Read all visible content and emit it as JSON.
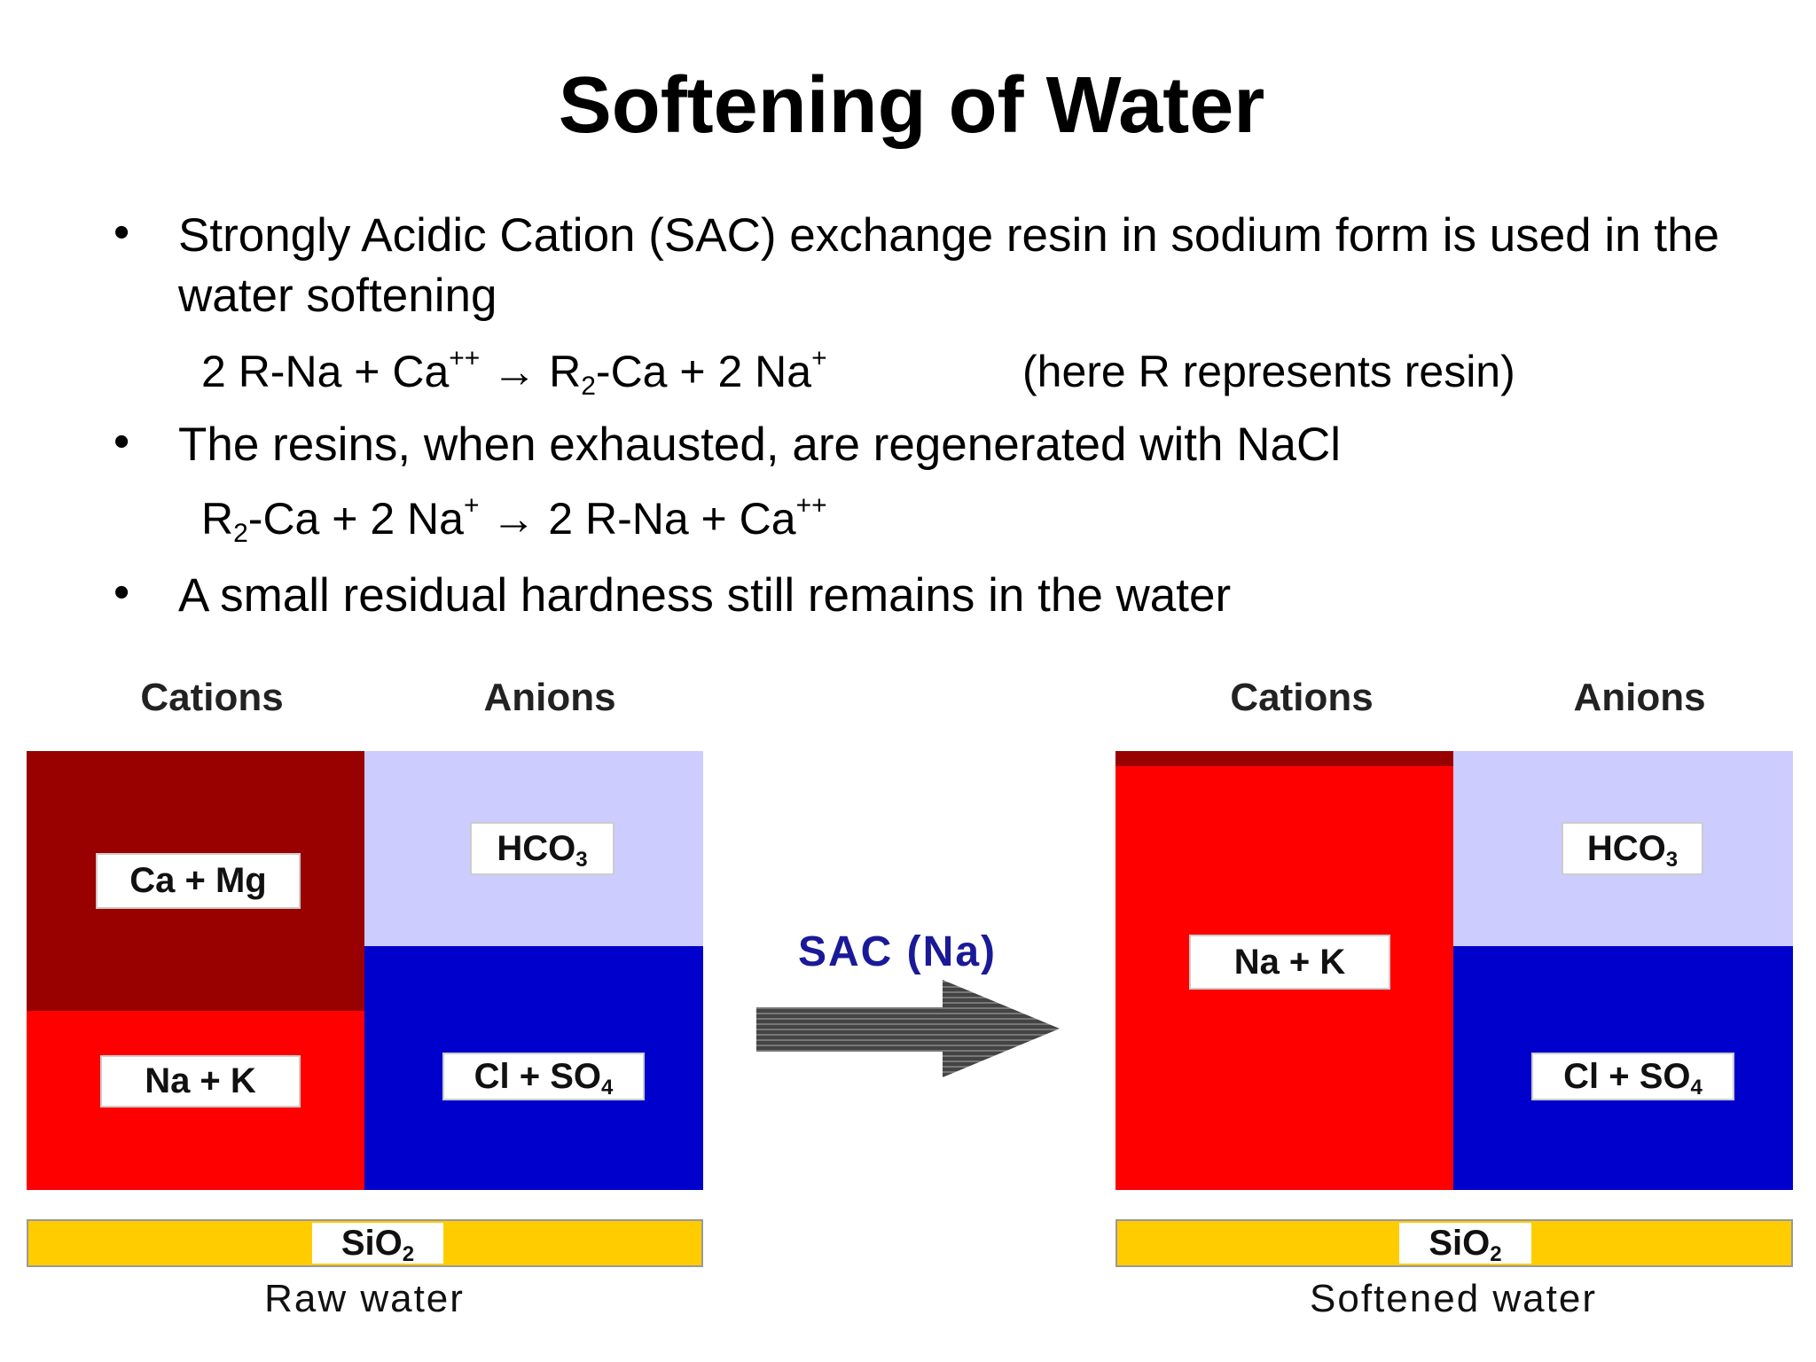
{
  "title": "Softening of Water",
  "bullets": [
    {
      "text": "Strongly Acidic Cation (SAC) exchange resin in sodium form is used in the water softening",
      "equation": [
        {
          "text": "2 R-Na + Ca"
        },
        {
          "sup": "++"
        },
        {
          "text": " → R"
        },
        {
          "sub": "2"
        },
        {
          "text": "-Ca + 2 Na"
        },
        {
          "sup": "+"
        }
      ],
      "note": "(here R represents resin)"
    },
    {
      "text": "The resins, when exhausted, are regenerated with NaCl",
      "equation": [
        {
          "text": "R"
        },
        {
          "sub": "2"
        },
        {
          "text": "-Ca + 2 Na"
        },
        {
          "sup": "+"
        },
        {
          "text": " → 2 R-Na + Ca"
        },
        {
          "sup": "++"
        }
      ]
    },
    {
      "text": "A small residual hardness still remains in the water"
    }
  ],
  "diagram": {
    "raw": {
      "cations_header": "Cations",
      "anions_header": "Anions",
      "hardness": [
        {
          "text": "Ca + Mg"
        }
      ],
      "alkali": [
        {
          "text": "Na + K"
        }
      ],
      "bicarbonate": [
        {
          "text": "HCO"
        },
        {
          "sub": "3"
        }
      ],
      "strong_anions": [
        {
          "text": "Cl + SO"
        },
        {
          "sub": "4"
        }
      ],
      "silica": [
        {
          "text": "SiO"
        },
        {
          "sub": "2"
        }
      ],
      "caption": "Raw water"
    },
    "process": "SAC (Na)",
    "softened": {
      "cations_header": "Cations",
      "anions_header": "Anions",
      "alkali": [
        {
          "text": "Na + K"
        }
      ],
      "bicarbonate": [
        {
          "text": "HCO"
        },
        {
          "sub": "3"
        }
      ],
      "strong_anions": [
        {
          "text": "Cl + SO"
        },
        {
          "sub": "4"
        }
      ],
      "silica": [
        {
          "text": "SiO"
        },
        {
          "sub": "2"
        }
      ],
      "caption": "Softened water"
    }
  }
}
